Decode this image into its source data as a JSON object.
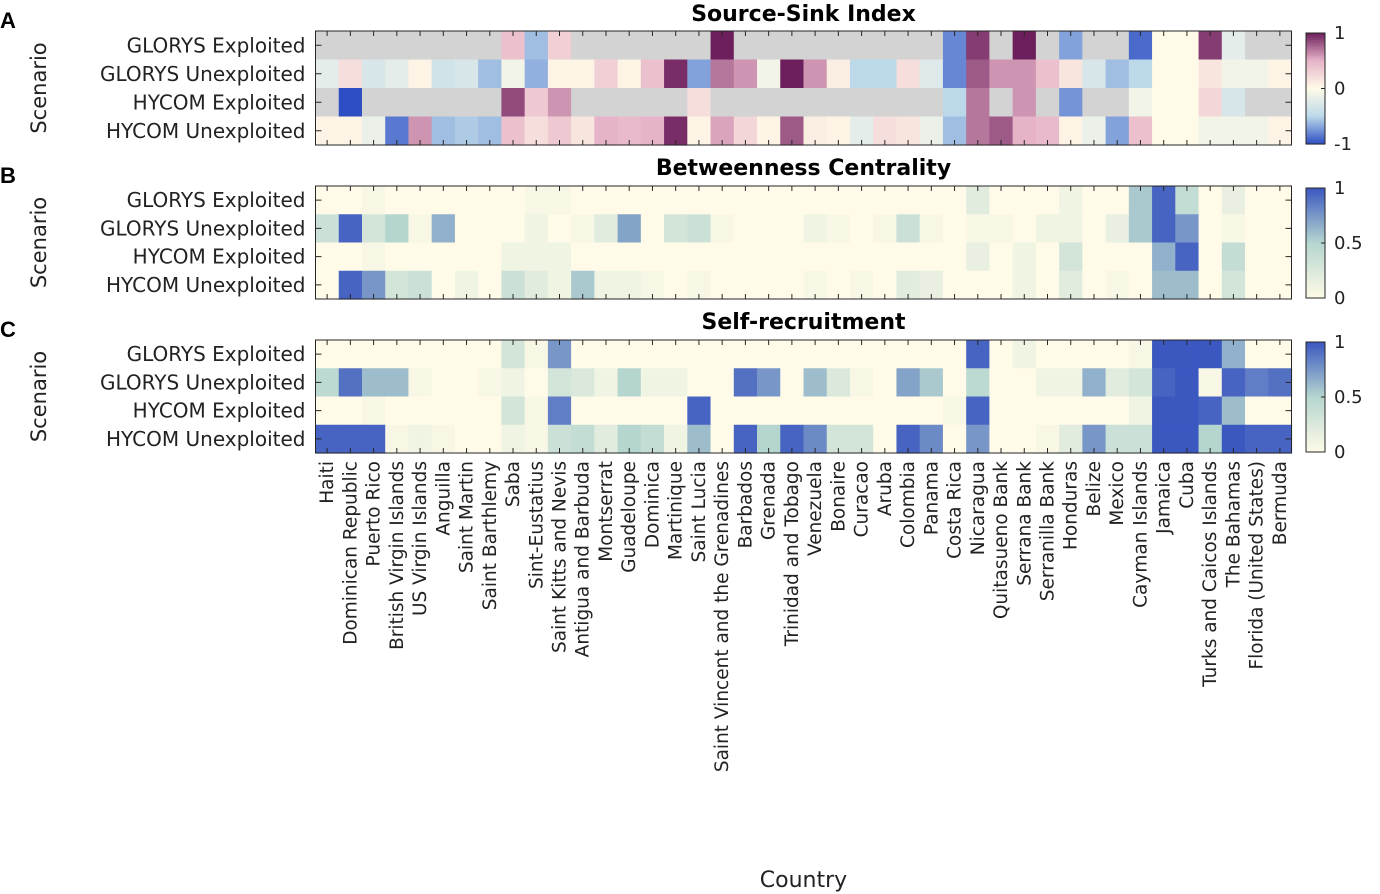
{
  "x_axis_label": "Country",
  "countries": [
    "Haiti",
    "Dominican Republic",
    "Puerto Rico",
    "British Virgin Islands",
    "US Virgin Islands",
    "Anguilla",
    "Saint Martin",
    "Saint Barthlemy",
    "Saba",
    "Sint-Eustatius",
    "Saint Kitts and Nevis",
    "Antigua and Barbuda",
    "Montserrat",
    "Guadeloupe",
    "Dominica",
    "Martinique",
    "Saint Lucia",
    "Saint Vincent and the Grenadines",
    "Barbados",
    "Grenada",
    "Trinidad and Tobago",
    "Venezuela",
    "Bonaire",
    "Curacao",
    "Aruba",
    "Colombia",
    "Panama",
    "Costa Rica",
    "Nicaragua",
    "Quitasueno Bank",
    "Serrana Bank",
    "Serranilla Bank",
    "Honduras",
    "Belize",
    "Mexico",
    "Cayman Islands",
    "Jamaica",
    "Cuba",
    "Turks and Caicos Islands",
    "The Bahamas",
    "Florida (United States)",
    "Bermuda"
  ],
  "colors": {
    "missing": "#d3d3d3",
    "div_low": "#2e4fc4",
    "div_mid": "#fffbe8",
    "div_high": "#6d1e5c",
    "seq_low": "#fffbe8",
    "seq_high": "#3b57c0"
  },
  "chart_data": [
    {
      "panel": "A",
      "type": "heatmap",
      "title": "Source-Sink Index",
      "ylabel": "Scenario",
      "xlabel": "Country",
      "rows": [
        "GLORYS Exploited",
        "GLORYS Unexploited",
        "HYCOM Exploited",
        "HYCOM Unexploited"
      ],
      "colorscale": "diverging",
      "clim": [
        -1,
        1
      ],
      "colorbar_ticks": [
        "1",
        "0",
        "-1"
      ],
      "values": [
        [
          null,
          null,
          null,
          null,
          null,
          null,
          null,
          null,
          0.4,
          -0.6,
          0.3,
          null,
          null,
          null,
          null,
          null,
          null,
          1.0,
          null,
          null,
          null,
          null,
          null,
          null,
          null,
          null,
          null,
          -0.8,
          0.9,
          null,
          1.0,
          null,
          -0.7,
          null,
          null,
          -0.9,
          0,
          0,
          0.9,
          -0.2,
          null,
          null
        ],
        [
          -0.2,
          0.2,
          -0.3,
          -0.2,
          0.05,
          -0.35,
          -0.3,
          -0.6,
          -0.1,
          -0.65,
          0.05,
          0.05,
          0.3,
          0.05,
          0.4,
          0.95,
          -0.7,
          0.7,
          0.6,
          -0.1,
          1.0,
          0.6,
          0.1,
          -0.5,
          -0.5,
          0.2,
          -0.25,
          -0.8,
          0.8,
          0.6,
          0.6,
          0.4,
          0.15,
          -0.3,
          -0.6,
          -0.5,
          0,
          0,
          0.15,
          -0.1,
          -0.1,
          0.05
        ],
        [
          null,
          -1.0,
          null,
          null,
          null,
          null,
          null,
          null,
          0.85,
          0.35,
          0.6,
          null,
          null,
          null,
          null,
          null,
          0.2,
          null,
          null,
          null,
          null,
          null,
          null,
          null,
          null,
          null,
          null,
          -0.5,
          0.7,
          null,
          0.6,
          null,
          -0.75,
          null,
          null,
          -0.1,
          0,
          0,
          0.25,
          -0.3,
          null,
          null
        ],
        [
          0.05,
          0.05,
          -0.15,
          -0.85,
          0.6,
          -0.6,
          -0.55,
          -0.6,
          0.4,
          0.2,
          0.35,
          0.15,
          0.5,
          0.45,
          0.5,
          0.95,
          0.05,
          0.55,
          0.25,
          0.05,
          0.8,
          0.1,
          0.05,
          -0.2,
          0.2,
          0.15,
          -0.15,
          -0.6,
          0.7,
          0.8,
          0.5,
          0.45,
          0.05,
          -0.15,
          -0.7,
          0.4,
          0,
          0,
          -0.1,
          -0.1,
          -0.1,
          0.05
        ]
      ]
    },
    {
      "panel": "B",
      "type": "heatmap",
      "title": "Betweenness Centrality",
      "ylabel": "Scenario",
      "xlabel": "Country",
      "rows": [
        "GLORYS Exploited",
        "GLORYS Unexploited",
        "HYCOM Exploited",
        "HYCOM Unexploited"
      ],
      "colorscale": "sequential",
      "clim": [
        0,
        1
      ],
      "colorbar_ticks": [
        "1",
        "0.5",
        "0"
      ],
      "values": [
        [
          0,
          0,
          0.05,
          0,
          0,
          0,
          0,
          0,
          0,
          0.05,
          0.05,
          0,
          0,
          0,
          0,
          0,
          0,
          0,
          0,
          0,
          0,
          0,
          0,
          0,
          0,
          0,
          0,
          0,
          0.2,
          0,
          0,
          0,
          0.1,
          0,
          0,
          0.55,
          0.95,
          0.4,
          0,
          0.15,
          0,
          0
        ],
        [
          0.35,
          0.95,
          0.3,
          0.5,
          0.05,
          0.65,
          0,
          0,
          0,
          0.1,
          0,
          0.05,
          0.2,
          0.7,
          0,
          0.3,
          0.35,
          0.05,
          0,
          0,
          0,
          0.1,
          0.05,
          0,
          0.05,
          0.35,
          0.05,
          0,
          0.05,
          0.05,
          0,
          0.1,
          0.1,
          0,
          0.15,
          0.55,
          0.95,
          0.75,
          0,
          0.05,
          0,
          0
        ],
        [
          0,
          0,
          0.05,
          0,
          0,
          0,
          0,
          0,
          0.1,
          0.1,
          0.1,
          0,
          0,
          0,
          0,
          0,
          0,
          0,
          0,
          0,
          0,
          0,
          0,
          0,
          0,
          0,
          0,
          0,
          0.15,
          0,
          0.1,
          0,
          0.3,
          0,
          0,
          0,
          0.65,
          0.95,
          0,
          0.4,
          0,
          0
        ],
        [
          0,
          0.95,
          0.75,
          0.3,
          0.35,
          0,
          0.1,
          0,
          0.35,
          0.2,
          0.1,
          0.55,
          0.1,
          0.1,
          0.05,
          0,
          0.05,
          0,
          0,
          0,
          0,
          0.05,
          0,
          0.05,
          0,
          0.2,
          0.15,
          0,
          0,
          0,
          0.1,
          0,
          0.2,
          0,
          0.05,
          0,
          0.6,
          0.6,
          0,
          0.3,
          0,
          0
        ]
      ]
    },
    {
      "panel": "C",
      "type": "heatmap",
      "title": "Self-recruitment",
      "ylabel": "Scenario",
      "xlabel": "Country",
      "rows": [
        "GLORYS Exploited",
        "GLORYS Unexploited",
        "HYCOM Exploited",
        "HYCOM Unexploited"
      ],
      "colorscale": "sequential",
      "clim": [
        0,
        1
      ],
      "colorbar_ticks": [
        "1",
        "0.5",
        "0"
      ],
      "values": [
        [
          0,
          0,
          0,
          0,
          0,
          0,
          0,
          0,
          0.3,
          0.05,
          0.75,
          0,
          0,
          0,
          0,
          0,
          0,
          0,
          0,
          0,
          0,
          0,
          0,
          0,
          0,
          0,
          0,
          0,
          0.95,
          0,
          0.1,
          0,
          0,
          0,
          0,
          0.05,
          1.0,
          1.0,
          1.0,
          0.65,
          0,
          0
        ],
        [
          0.45,
          0.9,
          0.6,
          0.6,
          0.05,
          0,
          0,
          0.05,
          0.1,
          0,
          0.3,
          0.25,
          0.1,
          0.5,
          0.1,
          0.1,
          0,
          0,
          0.9,
          0.75,
          0,
          0.6,
          0.25,
          0.05,
          0,
          0.7,
          0.55,
          0,
          0.45,
          0,
          0,
          0.1,
          0.1,
          0.65,
          0.2,
          0.3,
          0.95,
          1.0,
          0.05,
          0.95,
          0.85,
          0.9
        ],
        [
          0,
          0,
          0.05,
          0,
          0,
          0,
          0,
          0,
          0.3,
          0.05,
          0.85,
          0,
          0,
          0,
          0,
          0,
          0.95,
          0,
          0,
          0,
          0,
          0,
          0,
          0,
          0,
          0,
          0,
          0.05,
          0.95,
          0,
          0,
          0,
          0,
          0,
          0,
          0.1,
          1.0,
          1.0,
          0.95,
          0.6,
          0,
          0
        ],
        [
          0.95,
          0.95,
          0.95,
          0.05,
          0.1,
          0.05,
          0,
          0,
          0.1,
          0.05,
          0.35,
          0.4,
          0.2,
          0.5,
          0.4,
          0.1,
          0.6,
          0,
          0.95,
          0.5,
          0.95,
          0.8,
          0.3,
          0.3,
          0,
          0.95,
          0.8,
          0,
          0.75,
          0,
          0,
          0.05,
          0.2,
          0.75,
          0.35,
          0.35,
          1.0,
          1.0,
          0.5,
          1.0,
          0.95,
          0.95
        ]
      ]
    }
  ]
}
